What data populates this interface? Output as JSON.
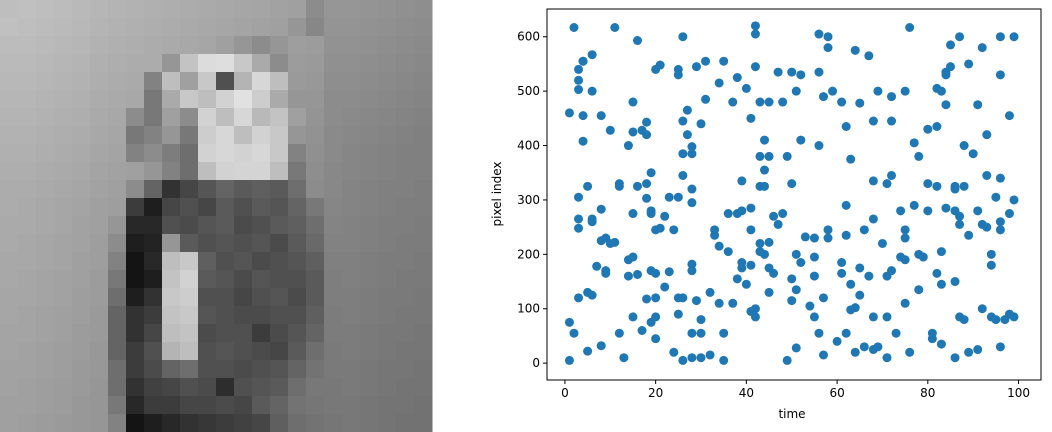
{
  "chart_data": [
    {
      "type": "image",
      "pixels": [
        [
          190,
          192,
          190,
          188,
          185,
          182,
          180,
          178,
          176,
          174,
          172,
          170,
          168,
          166,
          165,
          162,
          160,
          140,
          150,
          150,
          148,
          146,
          144,
          142
        ],
        [
          192,
          190,
          188,
          186,
          184,
          180,
          178,
          176,
          174,
          172,
          170,
          168,
          166,
          164,
          162,
          160,
          150,
          135,
          148,
          148,
          146,
          144,
          142,
          140
        ],
        [
          188,
          188,
          186,
          184,
          182,
          178,
          176,
          174,
          172,
          170,
          168,
          166,
          160,
          150,
          140,
          150,
          158,
          156,
          146,
          146,
          144,
          142,
          140,
          138
        ],
        [
          186,
          186,
          184,
          182,
          180,
          176,
          174,
          172,
          172,
          150,
          195,
          220,
          222,
          200,
          170,
          140,
          156,
          154,
          144,
          144,
          142,
          140,
          138,
          136
        ],
        [
          184,
          184,
          182,
          180,
          178,
          174,
          172,
          170,
          130,
          190,
          160,
          200,
          80,
          180,
          215,
          190,
          154,
          152,
          142,
          142,
          140,
          138,
          136,
          134
        ],
        [
          182,
          182,
          180,
          178,
          176,
          172,
          170,
          168,
          120,
          170,
          200,
          190,
          210,
          225,
          205,
          170,
          150,
          150,
          140,
          140,
          138,
          136,
          134,
          132
        ],
        [
          180,
          180,
          178,
          176,
          174,
          170,
          168,
          140,
          120,
          160,
          140,
          210,
          190,
          215,
          185,
          195,
          160,
          148,
          140,
          138,
          136,
          134,
          132,
          130
        ],
        [
          178,
          178,
          176,
          174,
          172,
          168,
          166,
          120,
          130,
          150,
          120,
          205,
          215,
          190,
          210,
          200,
          150,
          146,
          138,
          136,
          134,
          132,
          130,
          128
        ],
        [
          176,
          176,
          174,
          172,
          170,
          166,
          164,
          130,
          140,
          125,
          110,
          210,
          215,
          210,
          215,
          200,
          130,
          144,
          138,
          134,
          132,
          130,
          128,
          128
        ],
        [
          174,
          174,
          172,
          170,
          168,
          164,
          162,
          160,
          150,
          130,
          110,
          190,
          210,
          212,
          212,
          190,
          120,
          142,
          136,
          134,
          132,
          130,
          128,
          128
        ],
        [
          172,
          172,
          170,
          168,
          166,
          162,
          160,
          140,
          100,
          50,
          70,
          85,
          100,
          90,
          95,
          90,
          110,
          140,
          136,
          132,
          130,
          128,
          128,
          126
        ],
        [
          172,
          170,
          168,
          166,
          164,
          160,
          158,
          60,
          30,
          70,
          80,
          70,
          90,
          80,
          90,
          85,
          100,
          120,
          134,
          132,
          130,
          128,
          126,
          126
        ],
        [
          170,
          170,
          168,
          166,
          162,
          160,
          150,
          40,
          40,
          80,
          75,
          85,
          90,
          75,
          80,
          90,
          95,
          110,
          132,
          130,
          128,
          126,
          126,
          124
        ],
        [
          170,
          168,
          166,
          164,
          162,
          158,
          140,
          30,
          35,
          150,
          90,
          80,
          85,
          80,
          85,
          75,
          90,
          105,
          130,
          130,
          128,
          126,
          124,
          124
        ],
        [
          168,
          168,
          166,
          164,
          160,
          158,
          130,
          20,
          40,
          190,
          200,
          95,
          80,
          85,
          75,
          80,
          85,
          95,
          128,
          128,
          126,
          124,
          124,
          122
        ],
        [
          168,
          166,
          164,
          162,
          160,
          156,
          120,
          20,
          30,
          195,
          210,
          90,
          85,
          75,
          85,
          80,
          80,
          90,
          126,
          128,
          126,
          124,
          122,
          122
        ],
        [
          166,
          166,
          164,
          162,
          158,
          156,
          110,
          30,
          50,
          200,
          205,
          80,
          80,
          70,
          80,
          85,
          75,
          90,
          126,
          126,
          124,
          122,
          122,
          120
        ],
        [
          166,
          164,
          162,
          160,
          158,
          154,
          100,
          50,
          60,
          195,
          200,
          85,
          80,
          75,
          75,
          80,
          80,
          95,
          124,
          126,
          124,
          122,
          120,
          120
        ],
        [
          164,
          164,
          162,
          160,
          156,
          154,
          100,
          50,
          70,
          190,
          195,
          75,
          80,
          80,
          60,
          75,
          85,
          100,
          124,
          124,
          122,
          120,
          120,
          118
        ],
        [
          164,
          162,
          160,
          158,
          156,
          152,
          100,
          60,
          80,
          180,
          190,
          80,
          85,
          80,
          75,
          70,
          90,
          110,
          122,
          124,
          122,
          120,
          118,
          118
        ],
        [
          162,
          162,
          160,
          158,
          154,
          152,
          110,
          60,
          75,
          100,
          110,
          80,
          80,
          75,
          80,
          85,
          100,
          115,
          122,
          122,
          120,
          118,
          118,
          116
        ],
        [
          162,
          160,
          158,
          156,
          154,
          150,
          110,
          50,
          65,
          70,
          80,
          75,
          45,
          80,
          85,
          90,
          110,
          120,
          120,
          122,
          120,
          118,
          116,
          116
        ],
        [
          160,
          160,
          158,
          156,
          152,
          150,
          120,
          40,
          60,
          60,
          70,
          70,
          75,
          70,
          90,
          100,
          115,
          118,
          120,
          120,
          118,
          116,
          116,
          114
        ],
        [
          160,
          158,
          156,
          154,
          152,
          150,
          130,
          20,
          30,
          40,
          50,
          55,
          60,
          65,
          70,
          95,
          110,
          115,
          118,
          120,
          118,
          116,
          114,
          114
        ]
      ]
    },
    {
      "type": "scatter",
      "xlabel": "time",
      "ylabel": "pixel index",
      "color": "#1f77b4",
      "xlim": [
        -3.95,
        104.95
      ],
      "ylim": [
        -31,
        651
      ],
      "xticks": [
        0,
        20,
        40,
        60,
        80,
        100
      ],
      "yticks": [
        0,
        100,
        200,
        300,
        400,
        500,
        600
      ],
      "x": [
        1,
        1,
        1,
        2,
        2,
        3,
        3,
        3,
        3,
        3,
        3,
        3,
        4,
        4,
        4,
        4,
        5,
        5,
        5,
        6,
        6,
        6,
        6,
        6,
        7,
        8,
        8,
        8,
        8,
        9,
        9,
        9,
        10,
        10,
        11,
        11,
        12,
        12,
        12,
        13,
        14,
        14,
        14,
        15,
        15,
        15,
        15,
        15,
        16,
        16,
        16,
        17,
        17,
        18,
        18,
        18,
        18,
        18,
        19,
        19,
        19,
        19,
        19,
        20,
        20,
        20,
        20,
        20,
        20,
        21,
        21,
        22,
        22,
        23,
        23,
        24,
        24,
        25,
        25,
        25,
        25,
        25,
        26,
        26,
        26,
        26,
        26,
        26,
        27,
        27,
        28,
        28,
        28,
        28,
        28,
        28,
        28,
        28,
        29,
        29,
        30,
        30,
        30,
        30,
        31,
        31,
        32,
        32,
        33,
        33,
        34,
        34,
        34,
        35,
        35,
        35,
        36,
        36,
        37,
        37,
        38,
        38,
        38,
        39,
        39,
        39,
        39,
        40,
        40,
        41,
        41,
        41,
        41,
        41,
        42,
        42,
        42,
        42,
        42,
        43,
        43,
        43,
        43,
        43,
        44,
        44,
        44,
        44,
        45,
        45,
        45,
        45,
        45,
        46,
        46,
        47,
        47,
        48,
        48,
        49,
        49,
        50,
        50,
        50,
        50,
        51,
        51,
        51,
        51,
        52,
        52,
        52,
        53,
        54,
        55,
        55,
        55,
        55,
        56,
        56,
        56,
        56,
        57,
        57,
        57,
        58,
        58,
        58,
        58,
        59,
        60,
        61,
        61,
        61,
        62,
        62,
        62,
        62,
        63,
        63,
        63,
        64,
        64,
        64,
        65,
        65,
        65,
        66,
        66,
        67,
        67,
        68,
        68,
        68,
        68,
        68,
        69,
        69,
        70,
        71,
        71,
        71,
        71,
        72,
        72,
        72,
        72,
        73,
        74,
        74,
        75,
        75,
        75,
        75,
        75,
        76,
        76,
        77,
        77,
        78,
        78,
        78,
        79,
        80,
        80,
        80,
        81,
        81,
        82,
        82,
        82,
        82,
        83,
        83,
        83,
        83,
        84,
        84,
        84,
        84,
        85,
        85,
        86,
        86,
        86,
        86,
        86,
        87,
        87,
        87,
        87,
        88,
        88,
        88,
        89,
        89,
        89,
        90,
        91,
        91,
        91,
        92,
        92,
        92,
        93,
        93,
        93,
        94,
        94,
        94,
        95,
        95,
        96,
        96,
        96,
        96,
        96,
        96,
        97,
        98,
        98,
        98,
        99,
        99,
        99
      ],
      "values": [
        460,
        75,
        5,
        617,
        55,
        305,
        265,
        248,
        120,
        503,
        520,
        540,
        555,
        555,
        455,
        408,
        325,
        22,
        130,
        500,
        567,
        265,
        260,
        125,
        178,
        455,
        225,
        32,
        283,
        170,
        165,
        230,
        428,
        220,
        617,
        222,
        330,
        55,
        325,
        10,
        400,
        160,
        190,
        480,
        425,
        275,
        85,
        195,
        593,
        325,
        163,
        60,
        428,
        443,
        420,
        330,
        118,
        303,
        350,
        280,
        275,
        170,
        75,
        540,
        245,
        165,
        85,
        120,
        45,
        548,
        248,
        270,
        140,
        305,
        168,
        245,
        20,
        540,
        530,
        305,
        120,
        90,
        600,
        445,
        385,
        345,
        120,
        5,
        465,
        420,
        398,
        385,
        320,
        295,
        182,
        170,
        55,
        10,
        545,
        115,
        80,
        55,
        10,
        440,
        555,
        485,
        130,
        15,
        235,
        245,
        515,
        215,
        110,
        55,
        5,
        555,
        275,
        205,
        480,
        110,
        525,
        275,
        155,
        280,
        185,
        175,
        335,
        145,
        505,
        450,
        285,
        245,
        180,
        95,
        620,
        605,
        545,
        85,
        100,
        480,
        380,
        325,
        220,
        205,
        410,
        355,
        325,
        200,
        480,
        380,
        222,
        175,
        130,
        270,
        165,
        535,
        255,
        275,
        480,
        380,
        5,
        535,
        330,
        155,
        115,
        500,
        200,
        135,
        28,
        410,
        530,
        185,
        232,
        105,
        230,
        195,
        160,
        85,
        605,
        535,
        400,
        55,
        490,
        120,
        15,
        600,
        580,
        245,
        230,
        500,
        40,
        185,
        165,
        480,
        290,
        435,
        55,
        235,
        375,
        145,
        98,
        575,
        102,
        20,
        478,
        175,
        125,
        245,
        30,
        565,
        160,
        335,
        445,
        265,
        85,
        25,
        500,
        30,
        220,
        330,
        160,
        85,
        10,
        490,
        345,
        445,
        170,
        55,
        280,
        195,
        500,
        245,
        230,
        190,
        110,
        617,
        20,
        405,
        290,
        380,
        200,
        135,
        195,
        330,
        430,
        280,
        55,
        45,
        505,
        435,
        325,
        165,
        500,
        205,
        145,
        35,
        535,
        530,
        475,
        285,
        585,
        545,
        325,
        320,
        280,
        150,
        10,
        600,
        270,
        255,
        85,
        400,
        325,
        80,
        235,
        20,
        550,
        385,
        475,
        280,
        25,
        580,
        255,
        100,
        420,
        345,
        250,
        200,
        180,
        85,
        305,
        80,
        600,
        530,
        340,
        260,
        245,
        30,
        80,
        455,
        275,
        90,
        600,
        300,
        85
      ]
    }
  ]
}
